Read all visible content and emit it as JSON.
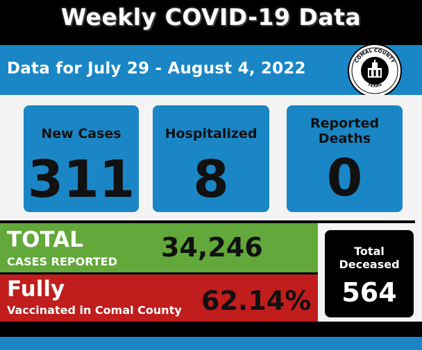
{
  "header": {
    "title": "Weekly COVID-19 Data"
  },
  "date_banner": {
    "text": "Data for July 29 - August 4, 2022"
  },
  "seal": {
    "top_text": "COMAL COUNTY",
    "bottom_text": "TEXAS"
  },
  "stats": [
    {
      "label": "New Cases",
      "value": "311"
    },
    {
      "label": "Hospitalized",
      "value": "8"
    },
    {
      "label_line1": "Reported",
      "label_line2": "Deaths",
      "value": "0"
    }
  ],
  "total_cases": {
    "label": "TOTAL",
    "sublabel": "CASES REPORTED",
    "value": "34,246"
  },
  "vaccinated": {
    "label": "Fully",
    "sublabel": "Vaccinated in Comal County",
    "value": "62.14%"
  },
  "deceased": {
    "label_line1": "Total",
    "label_line2": "Deceased",
    "value": "564"
  },
  "colors": {
    "blue": "#1a86c6",
    "green": "#62a83a",
    "red": "#c11d1d",
    "black": "#000000",
    "light": "#f4f4f4"
  }
}
